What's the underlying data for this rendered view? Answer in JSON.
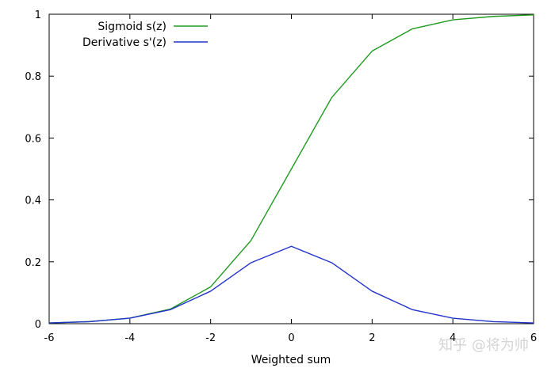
{
  "chart_data": {
    "type": "line",
    "title": "",
    "xlabel": "Weighted sum",
    "ylabel": "",
    "xlim": [
      -6,
      6
    ],
    "ylim": [
      0,
      1
    ],
    "x_ticks": [
      "-6",
      "-4",
      "-2",
      "0",
      "2",
      "4",
      "6"
    ],
    "y_ticks": [
      "0",
      "0.2",
      "0.4",
      "0.6",
      "0.8",
      "1"
    ],
    "grid": false,
    "legend_position": "top-left",
    "series": [
      {
        "name": "Sigmoid s(z)",
        "color": "#1f9a1f",
        "x": [
          -6,
          -5,
          -4,
          -3,
          -2,
          -1,
          0,
          1,
          2,
          3,
          4,
          5,
          6
        ],
        "y": [
          0.0025,
          0.0067,
          0.018,
          0.047,
          0.119,
          0.269,
          0.5,
          0.731,
          0.881,
          0.953,
          0.982,
          0.993,
          0.998
        ]
      },
      {
        "name": "Derivative s'(z)",
        "color": "#2233cc",
        "x": [
          -6,
          -5,
          -4,
          -3,
          -2,
          -1,
          0,
          1,
          2,
          3,
          4,
          5,
          6
        ],
        "y": [
          0.0025,
          0.0066,
          0.0177,
          0.0452,
          0.105,
          0.197,
          0.25,
          0.197,
          0.105,
          0.0452,
          0.0177,
          0.0066,
          0.0025
        ]
      }
    ]
  },
  "watermark": "知乎 @将为帅"
}
